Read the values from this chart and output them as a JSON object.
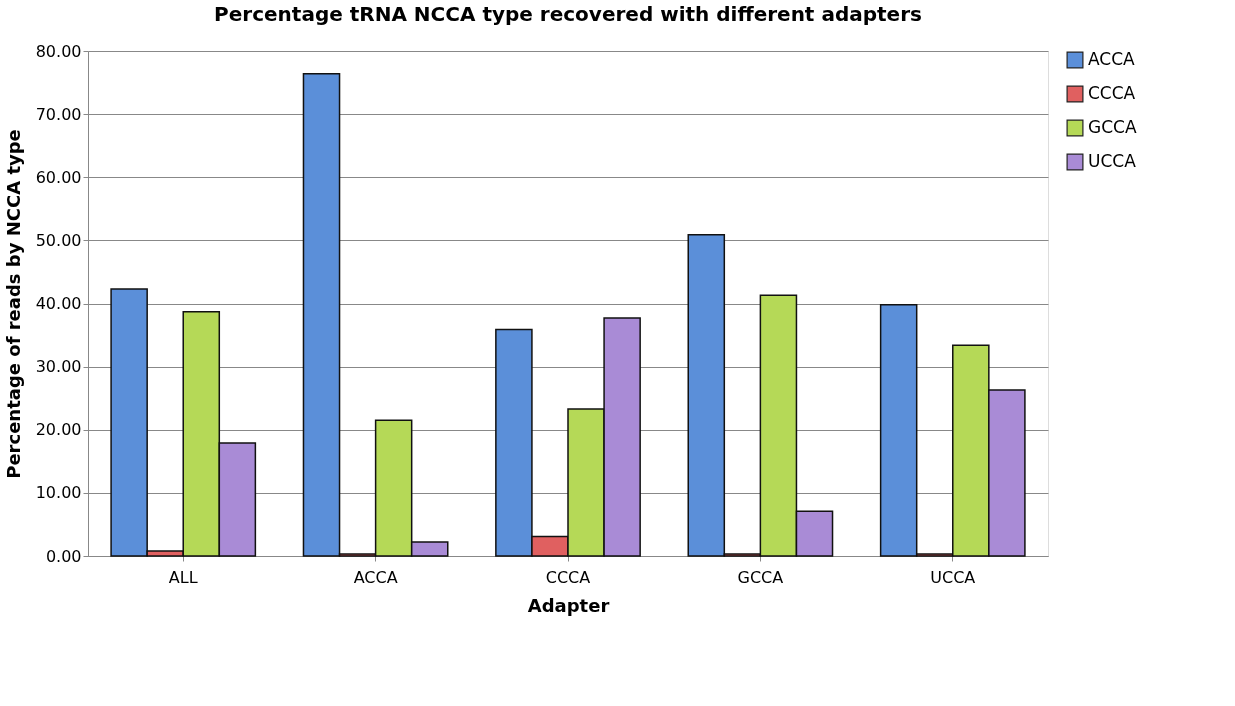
{
  "chart_data": {
    "type": "bar",
    "title": "Percentage tRNA NCCA type recovered with different adapters",
    "xlabel": "Adapter",
    "ylabel": "Percentage of reads by NCCA type",
    "categories": [
      "ALL",
      "ACCA",
      "CCCA",
      "GCCA",
      "UCCA"
    ],
    "series": [
      {
        "name": "ACCA",
        "color": "#5b8fd9",
        "values": [
          42.3,
          76.4,
          35.9,
          50.9,
          39.8
        ]
      },
      {
        "name": "CCCA",
        "color": "#e06060",
        "values": [
          0.8,
          0.3,
          3.1,
          0.3,
          0.3
        ]
      },
      {
        "name": "GCCA",
        "color": "#b5d957",
        "values": [
          38.7,
          21.5,
          23.3,
          41.3,
          33.4
        ]
      },
      {
        "name": "UCCA",
        "color": "#a98bd6",
        "values": [
          17.9,
          2.2,
          37.7,
          7.1,
          26.3
        ]
      }
    ],
    "ylim": [
      0,
      80
    ],
    "yticks": [
      {
        "value": 0,
        "label": "0.00"
      },
      {
        "value": 10,
        "label": "10.00"
      },
      {
        "value": 20,
        "label": "20.00"
      },
      {
        "value": 30,
        "label": "30.00"
      },
      {
        "value": 40,
        "label": "40.00"
      },
      {
        "value": 50,
        "label": "50.00"
      },
      {
        "value": 60,
        "label": "60.00"
      },
      {
        "value": 70,
        "label": "70.00"
      },
      {
        "value": 80,
        "label": "80.00"
      }
    ],
    "grid": "y",
    "legend": "right"
  }
}
